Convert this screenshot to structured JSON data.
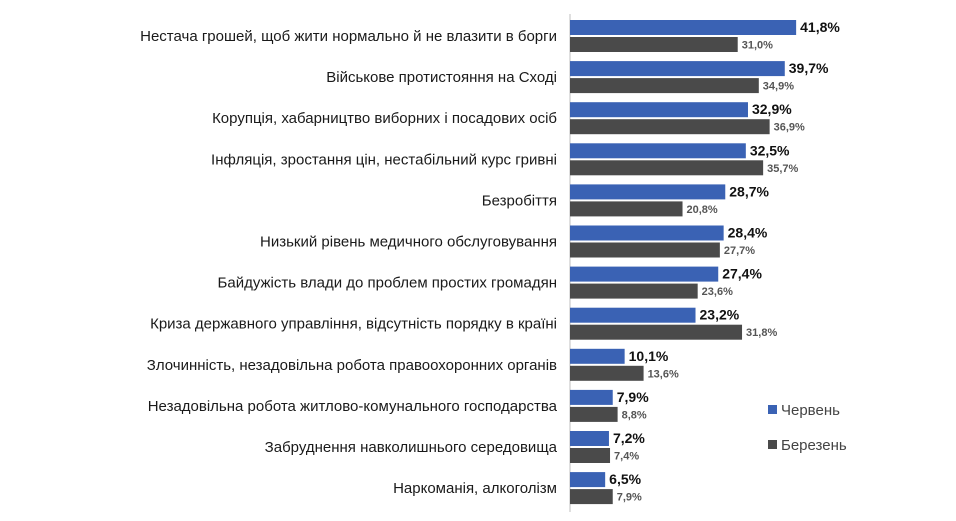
{
  "chart_data": {
    "type": "bar",
    "orientation": "horizontal",
    "categories": [
      "Нестача грошей, щоб жити нормально й не влазити в борги",
      "Військове протистояння на Сході",
      "Корупція, хабарництво виборних і посадових осіб",
      "Інфляція, зростання цін, нестабільний курс гривні",
      "Безробіття",
      "Низький рівень медичного обслуговування",
      "Байдужість влади до проблем простих громадян",
      "Криза державного управління, відсутність порядку в країні",
      "Злочинність, незадовільна робота правоохоронних органів",
      "Незадовільна робота житлово-комунального господарства",
      "Забруднення навколишнього середовища",
      "Наркоманія, алкоголізм"
    ],
    "series": [
      {
        "name": "Червень",
        "color": "#3a62b4",
        "values": [
          41.8,
          39.7,
          32.9,
          32.5,
          28.7,
          28.4,
          27.4,
          23.2,
          10.1,
          7.9,
          7.2,
          6.5
        ],
        "labels": [
          "41,8%",
          "39,7%",
          "32,9%",
          "32,5%",
          "28,7%",
          "28,4%",
          "27,4%",
          "23,2%",
          "10,1%",
          "7,9%",
          "7,2%",
          "6,5%"
        ]
      },
      {
        "name": "Березень",
        "color": "#4a4a4a",
        "values": [
          31.0,
          34.9,
          36.9,
          35.7,
          20.8,
          27.7,
          23.6,
          31.8,
          13.6,
          8.8,
          7.4,
          7.9
        ],
        "labels": [
          "31,0%",
          "34,9%",
          "36,9%",
          "35,7%",
          "20,8%",
          "27,7%",
          "23,6%",
          "31,8%",
          "13,6%",
          "8,8%",
          "7,4%",
          "7,9%"
        ]
      }
    ],
    "xlim": [
      0,
      100
    ],
    "grid": false,
    "legend_position": "bottom-right"
  }
}
